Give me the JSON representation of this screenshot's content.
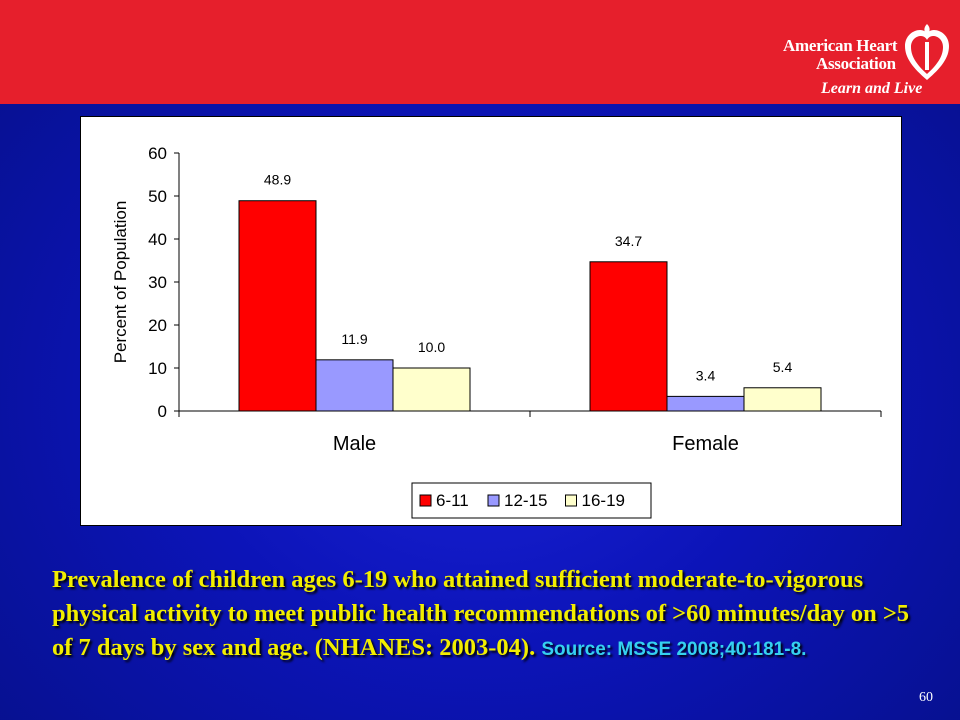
{
  "header": {
    "logo_line1": "American Heart",
    "logo_line2": "Association",
    "logo_tagline": "Learn and Live"
  },
  "caption": {
    "main": "Prevalence of children ages 6-19 who attained sufficient moderate-to-vigorous physical activity to meet public health recommendations of >60 minutes/day on >5 of 7 days by sex and age. (NHANES: 2003-04).",
    "source": "Source: MSSE 2008;40:181-8."
  },
  "slide_number": "60",
  "chart_data": {
    "type": "bar",
    "categories": [
      "Male",
      "Female"
    ],
    "series": [
      {
        "name": "6-11",
        "values": [
          48.9,
          34.7
        ],
        "labels": [
          "48.9",
          "34.7"
        ],
        "color": "#ff0000"
      },
      {
        "name": "12-15",
        "values": [
          11.9,
          3.4
        ],
        "labels": [
          "11.9",
          "3.4"
        ],
        "color": "#9999ff"
      },
      {
        "name": "16-19",
        "values": [
          10.0,
          5.4
        ],
        "labels": [
          "10.0",
          "5.4"
        ],
        "color": "#ffffcc"
      }
    ],
    "ylabel": "Percent of Population",
    "ylim": [
      0,
      60
    ],
    "yticks": [
      0,
      10,
      20,
      30,
      40,
      50,
      60
    ],
    "legend_position": "bottom-center",
    "grid": false
  }
}
